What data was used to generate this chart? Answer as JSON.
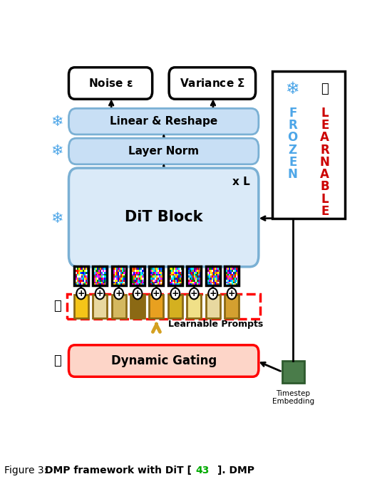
{
  "bg_color": "#ffffff",
  "frozen_color": "#4da6e8",
  "learnable_color": "#cc0000",
  "block_fill_light": "#c8dff5",
  "block_fill_lighter": "#daeaf8",
  "block_stroke": "#7ab0d4",
  "num_tokens": 9,
  "prompt_colors": [
    "#f5c518",
    "#e8d8a0",
    "#d4b860",
    "#8B6914",
    "#e8a020",
    "#d4b020",
    "#f0e088",
    "#e8d8a0",
    "#d4a030"
  ],
  "frozen_letters": [
    "F",
    "R",
    "O",
    "Z",
    "E",
    "N"
  ],
  "learnable_letters": [
    "L",
    "E",
    "A",
    "R",
    "N",
    "A",
    "B",
    "L",
    "E"
  ]
}
